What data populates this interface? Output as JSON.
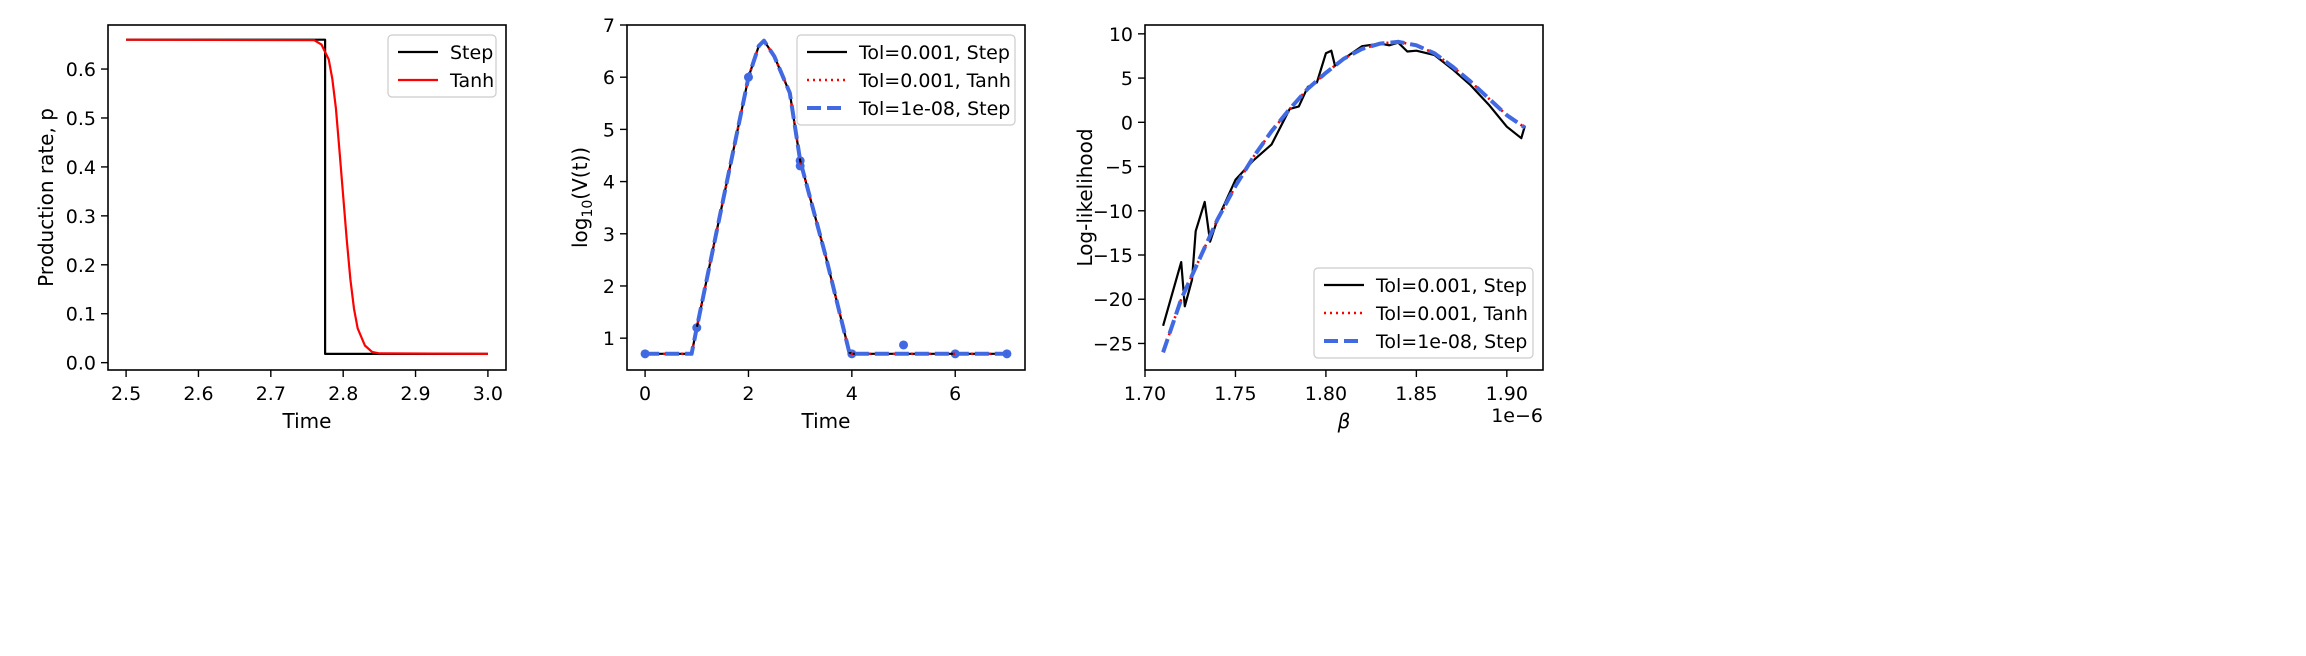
{
  "chart_data": [
    {
      "type": "line",
      "title": "",
      "xlabel": "Time",
      "ylabel": "Production rate, p",
      "xlim": [
        2.475,
        3.025
      ],
      "ylim": [
        -0.015,
        0.69
      ],
      "xticks": [
        2.5,
        2.6,
        2.7,
        2.8,
        2.9,
        3.0
      ],
      "xtick_labels": [
        "2.5",
        "2.6",
        "2.7",
        "2.8",
        "2.9",
        "3.0"
      ],
      "yticks": [
        0.0,
        0.1,
        0.2,
        0.3,
        0.4,
        0.5,
        0.6
      ],
      "ytick_labels": [
        "0.0",
        "0.1",
        "0.2",
        "0.3",
        "0.4",
        "0.5",
        "0.6"
      ],
      "legend_position": "top-right",
      "series": [
        {
          "name": "Step",
          "color": "#000000",
          "style": "solid",
          "x": [
            2.5,
            2.775,
            2.775,
            3.0
          ],
          "y": [
            0.66,
            0.66,
            0.018,
            0.018
          ]
        },
        {
          "name": "Tanh",
          "color": "#ff0000",
          "style": "solid",
          "x": [
            2.5,
            2.76,
            2.77,
            2.78,
            2.785,
            2.79,
            2.795,
            2.8,
            2.805,
            2.81,
            2.815,
            2.82,
            2.83,
            2.84,
            2.85,
            3.0
          ],
          "y": [
            0.66,
            0.659,
            0.65,
            0.62,
            0.58,
            0.52,
            0.43,
            0.34,
            0.25,
            0.17,
            0.11,
            0.07,
            0.035,
            0.022,
            0.019,
            0.018
          ]
        }
      ]
    },
    {
      "type": "line",
      "title": "",
      "xlabel": "Time",
      "ylabel_prefix": "log",
      "ylabel_sub": "10",
      "ylabel_suffix": "(V(t))",
      "xlim": [
        -0.35,
        7.35
      ],
      "ylim": [
        0.39,
        7.0
      ],
      "xticks": [
        0,
        2,
        4,
        6
      ],
      "xtick_labels": [
        "0",
        "2",
        "4",
        "6"
      ],
      "yticks": [
        1,
        2,
        3,
        4,
        5,
        6,
        7
      ],
      "ytick_labels": [
        "1",
        "2",
        "3",
        "4",
        "5",
        "6",
        "7"
      ],
      "legend_position": "top-right",
      "series": [
        {
          "name": "Tol=0.001, Step",
          "color": "#000000",
          "style": "solid",
          "x": [
            0,
            0.5,
            0.9,
            1.0,
            1.5,
            2.0,
            2.2,
            2.3,
            2.5,
            2.8,
            3.0,
            3.5,
            3.95,
            4.0,
            5.0,
            6.0,
            7.0
          ],
          "y": [
            0.7,
            0.7,
            0.7,
            1.2,
            3.6,
            6.0,
            6.6,
            6.7,
            6.4,
            5.7,
            4.4,
            2.55,
            0.73,
            0.7,
            0.7,
            0.7,
            0.7
          ]
        },
        {
          "name": "Tol=0.001, Tanh",
          "color": "#ff0000",
          "style": "dotted",
          "x": [
            0,
            0.5,
            0.9,
            1.0,
            1.5,
            2.0,
            2.2,
            2.3,
            2.5,
            2.8,
            3.0,
            3.5,
            3.95,
            4.0,
            5.0,
            6.0,
            7.0
          ],
          "y": [
            0.7,
            0.7,
            0.7,
            1.2,
            3.6,
            6.0,
            6.6,
            6.7,
            6.4,
            5.7,
            4.4,
            2.55,
            0.73,
            0.7,
            0.7,
            0.7,
            0.7
          ]
        },
        {
          "name": "Tol=1e-08, Step",
          "color": "#4169e1",
          "style": "dashed",
          "x": [
            0,
            0.5,
            0.9,
            1.0,
            1.5,
            2.0,
            2.2,
            2.3,
            2.5,
            2.8,
            3.0,
            3.5,
            3.95,
            4.0,
            5.0,
            6.0,
            7.0
          ],
          "y": [
            0.7,
            0.7,
            0.7,
            1.2,
            3.6,
            6.0,
            6.6,
            6.7,
            6.4,
            5.7,
            4.4,
            2.55,
            0.73,
            0.7,
            0.7,
            0.7,
            0.7
          ]
        }
      ],
      "observations": {
        "x": [
          0,
          1,
          2,
          3,
          3,
          4,
          5,
          6,
          7
        ],
        "y": [
          0.7,
          1.2,
          6.0,
          4.4,
          4.3,
          0.7,
          0.87,
          0.7,
          0.7
        ],
        "color": "#4169e1"
      }
    },
    {
      "type": "line",
      "title": "",
      "xlabel": "β",
      "ylabel": "Log-likelihood",
      "x_offset_label": "1e−6",
      "xlim": [
        1.7,
        1.92
      ],
      "ylim": [
        -28,
        11
      ],
      "xticks": [
        1.7,
        1.75,
        1.8,
        1.85,
        1.9
      ],
      "xtick_labels": [
        "1.70",
        "1.75",
        "1.80",
        "1.85",
        "1.90"
      ],
      "yticks": [
        -25,
        -20,
        -15,
        -10,
        -5,
        0,
        5,
        10
      ],
      "ytick_labels": [
        "−25",
        "−20",
        "−15",
        "−10",
        "−5",
        "0",
        "5",
        "10"
      ],
      "legend_position": "bottom-right",
      "series": [
        {
          "name": "Tol=0.001, Step",
          "color": "#000000",
          "style": "solid",
          "x": [
            1.71,
            1.72,
            1.722,
            1.726,
            1.728,
            1.733,
            1.736,
            1.74,
            1.75,
            1.76,
            1.77,
            1.78,
            1.785,
            1.79,
            1.795,
            1.8,
            1.803,
            1.805,
            1.81,
            1.82,
            1.83,
            1.835,
            1.84,
            1.845,
            1.85,
            1.86,
            1.87,
            1.88,
            1.89,
            1.9,
            1.908,
            1.91
          ],
          "y": [
            -23.0,
            -15.8,
            -20.8,
            -17.8,
            -12.3,
            -9.0,
            -13.5,
            -11.0,
            -6.5,
            -4.3,
            -2.5,
            1.5,
            1.8,
            4.0,
            4.5,
            7.8,
            8.1,
            6.4,
            7.2,
            8.6,
            8.9,
            8.7,
            9.0,
            8.0,
            8.1,
            7.6,
            6.0,
            4.2,
            2.0,
            -0.5,
            -1.8,
            -0.4
          ]
        },
        {
          "name": "Tol=0.001, Tanh",
          "color": "#ff0000",
          "style": "dotted",
          "x": [
            1.71,
            1.72,
            1.73,
            1.74,
            1.75,
            1.76,
            1.77,
            1.78,
            1.79,
            1.8,
            1.81,
            1.82,
            1.83,
            1.84,
            1.85,
            1.86,
            1.87,
            1.88,
            1.89,
            1.9,
            1.91
          ],
          "y": [
            -26.0,
            -20.0,
            -15.5,
            -11.0,
            -7.2,
            -3.9,
            -1.0,
            1.5,
            3.8,
            5.6,
            7.2,
            8.3,
            8.9,
            9.1,
            8.7,
            7.8,
            6.3,
            4.6,
            2.7,
            0.8,
            -0.6
          ]
        },
        {
          "name": "Tol=1e-08, Step",
          "color": "#4169e1",
          "style": "dashed",
          "x": [
            1.71,
            1.72,
            1.73,
            1.74,
            1.75,
            1.76,
            1.77,
            1.78,
            1.79,
            1.8,
            1.81,
            1.82,
            1.83,
            1.84,
            1.85,
            1.86,
            1.87,
            1.88,
            1.89,
            1.9,
            1.91
          ],
          "y": [
            -26.0,
            -20.0,
            -15.5,
            -11.0,
            -7.2,
            -3.9,
            -1.0,
            1.5,
            3.8,
            5.6,
            7.2,
            8.3,
            8.9,
            9.1,
            8.7,
            7.8,
            6.3,
            4.6,
            2.7,
            0.8,
            -0.6
          ]
        }
      ]
    }
  ]
}
